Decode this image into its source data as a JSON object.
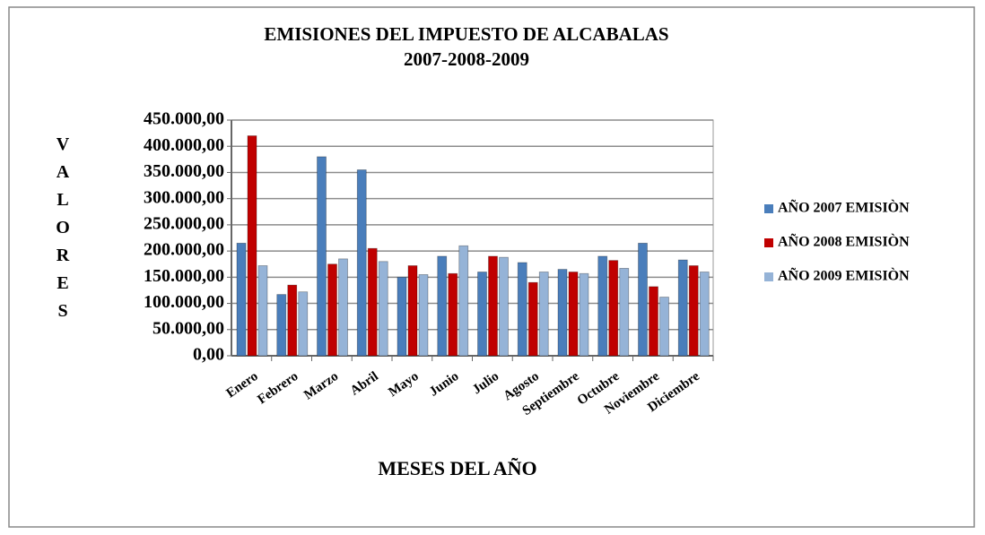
{
  "chart_data": {
    "type": "bar",
    "title": "EMISIONES DEL IMPUESTO DE ALCABALAS",
    "subtitle": "2007-2008-2009",
    "y_label": "VALORES",
    "x_label": "MESES DEL AÑO",
    "categories": [
      "Enero",
      "Febrero",
      "Marzo",
      "Abril",
      "Mayo",
      "Junio",
      "Julio",
      "Agosto",
      "Septiembre",
      "Octubre",
      "Noviembre",
      "Diciembre"
    ],
    "series": [
      {
        "name": "AÑO 2007 EMISIÒN",
        "color": "#4a7ebb",
        "values": [
          215000,
          117000,
          380000,
          355000,
          150000,
          190000,
          160000,
          178000,
          165000,
          190000,
          215000,
          183000
        ]
      },
      {
        "name": "AÑO 2008 EMISIÒN",
        "color": "#c00000",
        "values": [
          420000,
          135000,
          175000,
          205000,
          172000,
          157000,
          190000,
          140000,
          160000,
          182000,
          132000,
          172000
        ]
      },
      {
        "name": "AÑO 2009 EMISIÒN",
        "color": "#95b3d7",
        "values": [
          172000,
          122000,
          185000,
          180000,
          155000,
          210000,
          188000,
          160000,
          157000,
          167000,
          112000,
          160000
        ]
      }
    ],
    "ylim": [
      0,
      450000
    ],
    "yticks": [
      {
        "value": 0,
        "label": "0,00"
      },
      {
        "value": 50000,
        "label": "50.000,00"
      },
      {
        "value": 100000,
        "label": "100.000,00"
      },
      {
        "value": 150000,
        "label": "150.000,00"
      },
      {
        "value": 200000,
        "label": "200.000,00"
      },
      {
        "value": 250000,
        "label": "250.000,00"
      },
      {
        "value": 300000,
        "label": "300.000,00"
      },
      {
        "value": 350000,
        "label": "350.000,00"
      },
      {
        "value": 400000,
        "label": "400.000,00"
      },
      {
        "value": 450000,
        "label": "450.000,00"
      }
    ],
    "grid": true,
    "legend": "right"
  }
}
